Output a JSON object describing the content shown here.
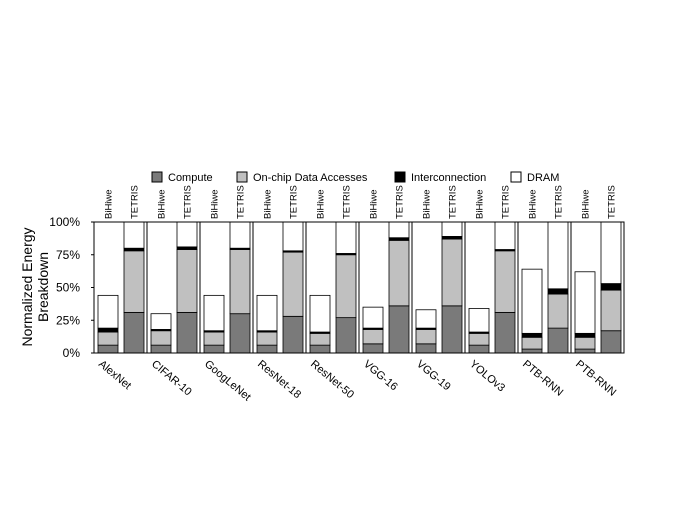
{
  "chart_data": {
    "type": "bar",
    "stacked": true,
    "ylabel": "Normalized Energy Breakdown",
    "ylabel_lines": [
      "Normalized Energy",
      "Breakdown"
    ],
    "ylim": [
      0,
      100
    ],
    "yticks": [
      0,
      25,
      50,
      75,
      100
    ],
    "ytick_labels": [
      "0%",
      "25%",
      "50%",
      "75%",
      "100%"
    ],
    "legend_position": "top",
    "components": [
      "Compute",
      "On-chip Data Accesses",
      "Interconnection",
      "DRAM"
    ],
    "colors": {
      "Compute": "#7a7a7a",
      "On-chip Data Accesses": "#c0c0c0",
      "Interconnection": "#000000",
      "DRAM": "#ffffff"
    },
    "bar_labels": [
      "BiHiwe",
      "TETRIS"
    ],
    "groups": [
      {
        "name": "AlexNet",
        "bars": [
          {
            "label": "BiHiwe",
            "Compute": 6,
            "On-chip Data Accesses": 10,
            "Interconnection": 3,
            "DRAM": 25
          },
          {
            "label": "TETRIS",
            "Compute": 31,
            "On-chip Data Accesses": 47,
            "Interconnection": 2,
            "DRAM": 20
          }
        ]
      },
      {
        "name": "CIFAR-10",
        "bars": [
          {
            "label": "BiHiwe",
            "Compute": 6,
            "On-chip Data Accesses": 11,
            "Interconnection": 1,
            "DRAM": 12
          },
          {
            "label": "TETRIS",
            "Compute": 31,
            "On-chip Data Accesses": 48,
            "Interconnection": 2,
            "DRAM": 19
          }
        ]
      },
      {
        "name": "GoogLeNet",
        "bars": [
          {
            "label": "BiHiwe",
            "Compute": 6,
            "On-chip Data Accesses": 10,
            "Interconnection": 1,
            "DRAM": 27
          },
          {
            "label": "TETRIS",
            "Compute": 30,
            "On-chip Data Accesses": 49,
            "Interconnection": 1,
            "DRAM": 20
          }
        ]
      },
      {
        "name": "ResNet-18",
        "bars": [
          {
            "label": "BiHiwe",
            "Compute": 6,
            "On-chip Data Accesses": 10,
            "Interconnection": 1,
            "DRAM": 27
          },
          {
            "label": "TETRIS",
            "Compute": 28,
            "On-chip Data Accesses": 49,
            "Interconnection": 1,
            "DRAM": 22
          }
        ]
      },
      {
        "name": "ResNet-50",
        "bars": [
          {
            "label": "BiHiwe",
            "Compute": 6,
            "On-chip Data Accesses": 9,
            "Interconnection": 1,
            "DRAM": 28
          },
          {
            "label": "TETRIS",
            "Compute": 27,
            "On-chip Data Accesses": 48,
            "Interconnection": 1,
            "DRAM": 24
          }
        ]
      },
      {
        "name": "VGG-16",
        "bars": [
          {
            "label": "BiHiwe",
            "Compute": 7,
            "On-chip Data Accesses": 11,
            "Interconnection": 1,
            "DRAM": 16
          },
          {
            "label": "TETRIS",
            "Compute": 36,
            "On-chip Data Accesses": 50,
            "Interconnection": 2,
            "DRAM": 12
          }
        ]
      },
      {
        "name": "VGG-19",
        "bars": [
          {
            "label": "BiHiwe",
            "Compute": 7,
            "On-chip Data Accesses": 11,
            "Interconnection": 1,
            "DRAM": 14
          },
          {
            "label": "TETRIS",
            "Compute": 36,
            "On-chip Data Accesses": 51,
            "Interconnection": 2,
            "DRAM": 11
          }
        ]
      },
      {
        "name": "YOLOv3",
        "bars": [
          {
            "label": "BiHiwe",
            "Compute": 6,
            "On-chip Data Accesses": 9,
            "Interconnection": 1,
            "DRAM": 18
          },
          {
            "label": "TETRIS",
            "Compute": 31,
            "On-chip Data Accesses": 47,
            "Interconnection": 1,
            "DRAM": 21
          }
        ]
      },
      {
        "name": "PTB-RNN",
        "bars": [
          {
            "label": "BiHiwe",
            "Compute": 3,
            "On-chip Data Accesses": 9,
            "Interconnection": 3,
            "DRAM": 49
          },
          {
            "label": "TETRIS",
            "Compute": 19,
            "On-chip Data Accesses": 26,
            "Interconnection": 4,
            "DRAM": 51
          }
        ]
      },
      {
        "name": "PTB-RNN",
        "bars": [
          {
            "label": "BiHiwe",
            "Compute": 3,
            "On-chip Data Accesses": 9,
            "Interconnection": 3,
            "DRAM": 47
          },
          {
            "label": "TETRIS",
            "Compute": 17,
            "On-chip Data Accesses": 31,
            "Interconnection": 5,
            "DRAM": 47
          }
        ]
      }
    ]
  }
}
